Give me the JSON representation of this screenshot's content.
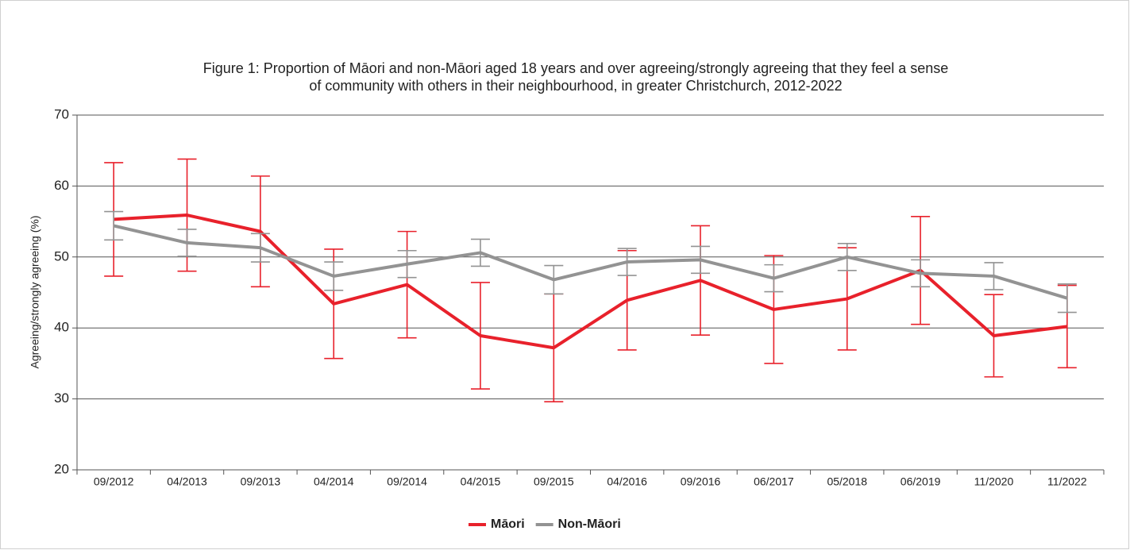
{
  "chart_data": {
    "type": "line",
    "title": [
      "Figure 1: Proportion of Māori and non-Māori aged 18 years and over agreeing/strongly agreeing that they feel a sense",
      "of community with others in their neighbourhood, in greater Christchurch, 2012-2022"
    ],
    "y_label": "Agreeing/strongly agreeing (%)",
    "categories": [
      "09/2012",
      "04/2013",
      "09/2013",
      "04/2014",
      "09/2014",
      "04/2015",
      "09/2015",
      "04/2016",
      "09/2016",
      "06/2017",
      "05/2018",
      "06/2019",
      "11/2020",
      "11/2022"
    ],
    "series": [
      {
        "name": "Māori",
        "color": "#e8212b",
        "values": [
          55.3,
          55.9,
          53.6,
          43.4,
          46.1,
          38.9,
          37.2,
          43.9,
          46.7,
          42.6,
          44.1,
          48.1,
          38.9,
          40.2
        ],
        "errors": [
          8.0,
          7.9,
          7.8,
          7.7,
          7.5,
          7.5,
          7.6,
          7.0,
          7.7,
          7.6,
          7.2,
          7.6,
          5.8,
          5.8
        ]
      },
      {
        "name": "Non-Māori",
        "color": "#939393",
        "values": [
          54.4,
          52.0,
          51.3,
          47.3,
          49.0,
          50.6,
          46.8,
          49.3,
          49.6,
          47.0,
          50.0,
          47.7,
          47.3,
          44.2
        ],
        "errors": [
          2.0,
          1.9,
          2.0,
          2.0,
          1.9,
          1.9,
          2.0,
          1.9,
          1.9,
          1.9,
          1.9,
          1.9,
          1.9,
          2.0
        ]
      }
    ],
    "ylim": [
      20,
      70
    ],
    "yticks": [
      20,
      30,
      40,
      50,
      60,
      70
    ],
    "grid": true,
    "legend": "bottom"
  }
}
